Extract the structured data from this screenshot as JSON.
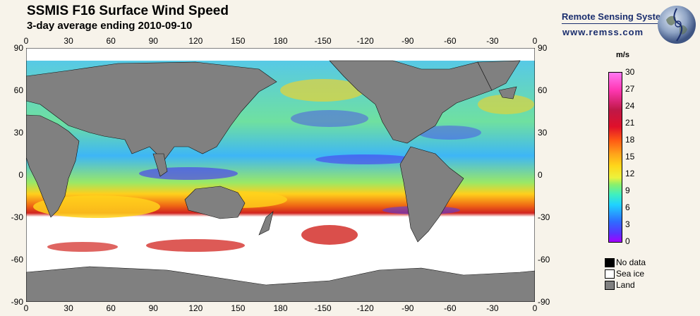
{
  "header": {
    "title": "SSMIS F16 Surface Wind Speed",
    "subtitle": "3-day average ending 2010-09-10",
    "brand": "Remote Sensing Systems",
    "url": "www.remss.com"
  },
  "map": {
    "top_lon_labels": [
      "0",
      "30",
      "60",
      "90",
      "120",
      "150",
      "180",
      "-150",
      "-120",
      "-90",
      "-60",
      "-30",
      "0"
    ],
    "bottom_lon_labels": [
      "0",
      "30",
      "60",
      "90",
      "120",
      "150",
      "180",
      "-150",
      "-120",
      "-90",
      "-60",
      "-30",
      "0"
    ],
    "left_lat_labels": [
      "90",
      "60",
      "30",
      "0",
      "-30",
      "-60",
      "-90"
    ],
    "right_lat_labels": [
      "90",
      "60",
      "30",
      "0",
      "-30",
      "-60",
      "-90"
    ],
    "colors": {
      "ocean_bg": "#46c8f0",
      "land": "#808080",
      "sea_ice": "#ffffff",
      "no_data": "#000000"
    }
  },
  "legend": {
    "unit": "m/s",
    "labels": [
      "30",
      "27",
      "24",
      "21",
      "18",
      "15",
      "12",
      "9",
      "6",
      "3",
      "0"
    ],
    "keys": [
      {
        "label": "No data",
        "color": "#000000"
      },
      {
        "label": "Sea ice",
        "color": "#ffffff"
      },
      {
        "label": "Land",
        "color": "#808080"
      }
    ]
  }
}
